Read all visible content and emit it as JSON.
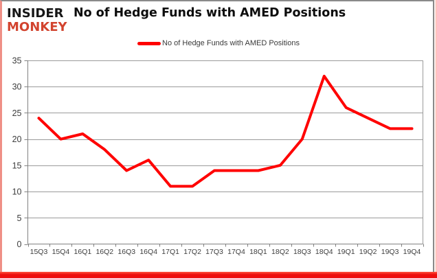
{
  "page": {
    "background": "#ffffff",
    "frame_gray": "#8a8a8a",
    "frame_pink": "#ef8f86",
    "bottom_bar_red": "#ee0e0e"
  },
  "logo": {
    "line1": "INSIDER",
    "line2": "MONKEY",
    "line1_color": "#161616",
    "line2_color": "#d2432e"
  },
  "header": {
    "title": "No of Hedge Funds with AMED Positions"
  },
  "legend": {
    "label": "No of Hedge Funds with AMED Positions",
    "line_color": "#ff0000"
  },
  "chart_data": {
    "type": "line",
    "title": "No of Hedge Funds with AMED Positions",
    "categories": [
      "15Q3",
      "15Q4",
      "16Q1",
      "16Q2",
      "16Q3",
      "16Q4",
      "17Q1",
      "17Q2",
      "17Q3",
      "17Q4",
      "18Q1",
      "18Q2",
      "18Q3",
      "18Q4",
      "19Q1",
      "19Q2",
      "19Q3",
      "19Q4"
    ],
    "series": [
      {
        "name": "No of Hedge Funds with AMED Positions",
        "color": "#ff0000",
        "values": [
          24,
          20,
          21,
          18,
          14,
          16,
          11,
          11,
          14,
          14,
          14,
          15,
          20,
          32,
          26,
          24,
          22,
          22
        ]
      }
    ],
    "ylim": [
      0,
      35
    ],
    "y_ticks": [
      0,
      5,
      10,
      15,
      20,
      25,
      30,
      35
    ],
    "grid": "horizontal",
    "gridline_color": "#9a9a9a",
    "axis_color": "#808080",
    "tick_label_color": "#3d3d3d",
    "legend_position": "top",
    "xlabel": "",
    "ylabel": ""
  }
}
